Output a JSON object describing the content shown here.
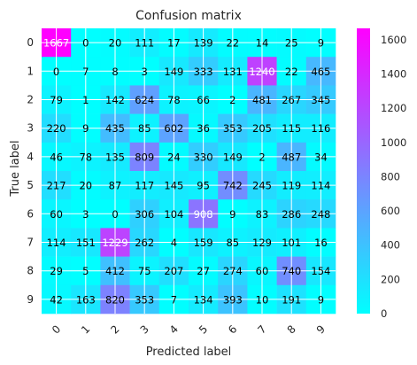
{
  "chart_data": {
    "type": "heatmap",
    "title": "Confusion matrix",
    "xlabel": "Predicted label",
    "ylabel": "True label",
    "x_categories": [
      "0",
      "1",
      "2",
      "3",
      "4",
      "5",
      "6",
      "7",
      "8",
      "9"
    ],
    "y_categories": [
      "0",
      "1",
      "2",
      "3",
      "4",
      "5",
      "6",
      "7",
      "8",
      "9"
    ],
    "values": [
      [
        1667,
        0,
        20,
        111,
        17,
        139,
        22,
        14,
        25,
        9
      ],
      [
        0,
        7,
        8,
        3,
        149,
        333,
        131,
        1240,
        22,
        465
      ],
      [
        79,
        1,
        142,
        624,
        78,
        66,
        2,
        481,
        267,
        345
      ],
      [
        220,
        9,
        435,
        85,
        602,
        36,
        353,
        205,
        115,
        116
      ],
      [
        46,
        78,
        135,
        809,
        24,
        330,
        149,
        2,
        487,
        34
      ],
      [
        217,
        20,
        87,
        117,
        145,
        95,
        742,
        245,
        119,
        114
      ],
      [
        60,
        3,
        0,
        306,
        104,
        908,
        9,
        83,
        286,
        248
      ],
      [
        114,
        151,
        1229,
        262,
        4,
        159,
        85,
        129,
        101,
        16
      ],
      [
        29,
        5,
        412,
        75,
        207,
        27,
        274,
        60,
        740,
        154
      ],
      [
        42,
        163,
        820,
        353,
        7,
        134,
        393,
        10,
        191,
        9
      ]
    ],
    "colormap": "cool",
    "colormap_start": "#00ffff",
    "colormap_end": "#ff00ff",
    "colorbar": {
      "ticks": [
        0,
        200,
        400,
        600,
        800,
        1000,
        1200,
        1400,
        1600
      ],
      "range": [
        0,
        1667
      ]
    },
    "grid": true,
    "grid_color": "#ffffff",
    "text_color_dark": "#000000",
    "text_color_light": "#ffffff"
  }
}
